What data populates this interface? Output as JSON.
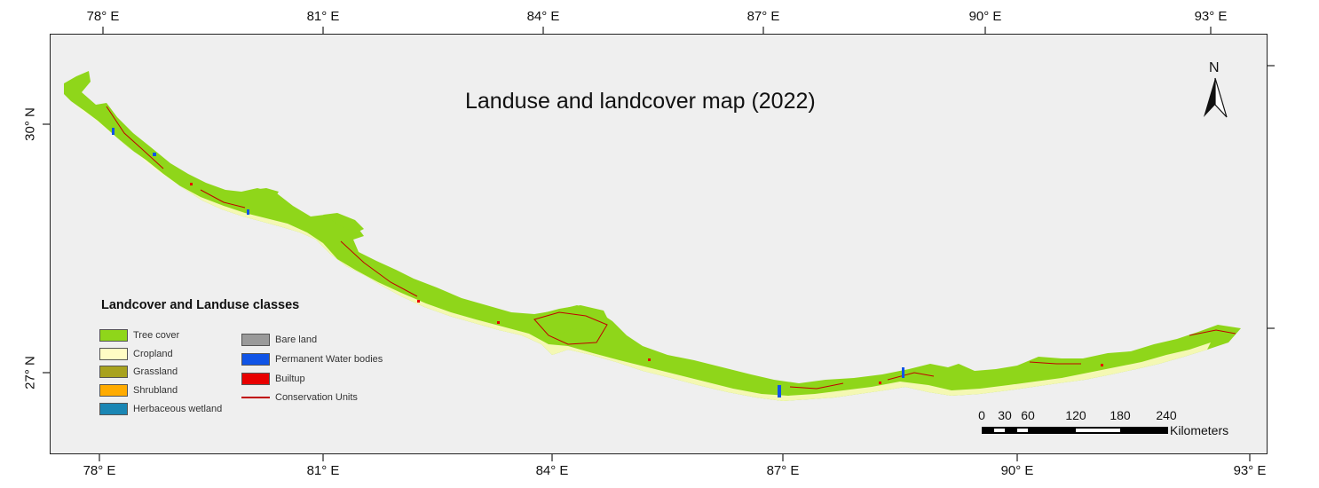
{
  "map": {
    "title": "Landuse and landcover map (2022)",
    "north_label": "N",
    "top_longitude_labels": [
      "78° E",
      "81° E",
      "84° E",
      "87° E",
      "90° E",
      "93° E"
    ],
    "bottom_longitude_labels": [
      "78° E",
      "81° E",
      "84° E",
      "87° E",
      "90° E",
      "93° E"
    ],
    "latitude_labels": [
      "30° N",
      "27° N"
    ],
    "legend": {
      "title": "Landcover and Landuse classes",
      "items": [
        {
          "label": "Tree cover",
          "color": "#8fd61a"
        },
        {
          "label": "Cropland",
          "color": "#fffcc4"
        },
        {
          "label": "Grassland",
          "color": "#a8a21e"
        },
        {
          "label": "Shrubland",
          "color": "#ffab00"
        },
        {
          "label": "Herbaceous wetland",
          "color": "#1a86b4"
        },
        {
          "label": "Bare land",
          "color": "#9a9a9a"
        },
        {
          "label": "Permanent Water bodies",
          "color": "#1054e6"
        },
        {
          "label": "Builtup",
          "color": "#e80000"
        },
        {
          "label": "Conservation Units",
          "color": "#c00000"
        }
      ]
    },
    "scale_bar": {
      "values": [
        "0",
        "30",
        "60",
        "120",
        "180",
        "240"
      ],
      "unit": "Kilometers"
    }
  }
}
